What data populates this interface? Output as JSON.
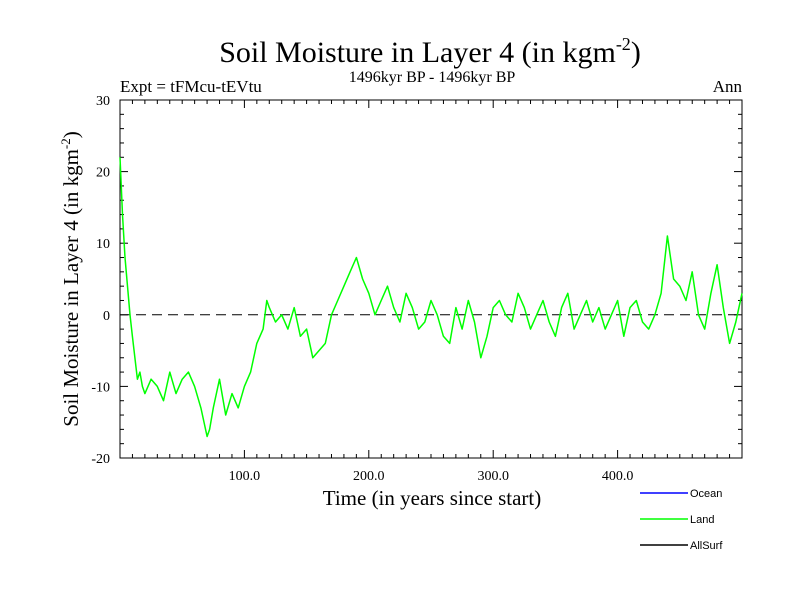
{
  "chart_data": {
    "type": "line",
    "title": "Soil Moisture in Layer 4 (in kgm",
    "title_sup": "-2",
    "title_close": ")",
    "subtitle_left": "Expt = tFMcu-tEVtu",
    "subtitle_center": "1496kyr BP - 1496kyr BP",
    "subtitle_right": "Ann",
    "xlabel": "Time (in years since start)",
    "ylabel": "Soil Moisture in Layer 4 (in kgm",
    "ylabel_sup": "-2",
    "ylabel_close": ")",
    "xlim": [
      0,
      500
    ],
    "ylim": [
      -20,
      30
    ],
    "xticks": [
      100,
      200,
      300,
      400
    ],
    "xtick_labels": [
      "100.0",
      "200.0",
      "300.0",
      "400.0"
    ],
    "yticks": [
      -20,
      -10,
      0,
      10,
      20,
      30
    ],
    "ytick_labels": [
      "-20",
      "-10",
      "0",
      "10",
      "20",
      "30"
    ],
    "zero_line": 0,
    "legend": [
      {
        "name": "Ocean",
        "color": "#0000ff"
      },
      {
        "name": "Land",
        "color": "#00ff00"
      },
      {
        "name": "AllSurf",
        "color": "#000000"
      }
    ],
    "series": [
      {
        "name": "Land",
        "color": "#00ff00",
        "x": [
          0,
          2,
          4,
          6,
          8,
          10,
          12,
          14,
          16,
          18,
          20,
          25,
          30,
          35,
          40,
          45,
          50,
          55,
          60,
          65,
          70,
          72,
          75,
          80,
          85,
          90,
          95,
          100,
          105,
          110,
          115,
          118,
          120,
          125,
          130,
          135,
          140,
          145,
          150,
          155,
          160,
          165,
          170,
          175,
          180,
          185,
          190,
          195,
          200,
          205,
          210,
          215,
          220,
          225,
          230,
          235,
          240,
          245,
          250,
          255,
          260,
          265,
          270,
          275,
          280,
          285,
          290,
          295,
          300,
          305,
          310,
          315,
          320,
          325,
          330,
          335,
          340,
          345,
          350,
          355,
          360,
          365,
          370,
          375,
          380,
          385,
          390,
          395,
          400,
          405,
          410,
          415,
          420,
          425,
          430,
          435,
          440,
          445,
          450,
          455,
          460,
          465,
          470,
          475,
          480,
          485,
          490,
          495,
          500
        ],
        "y": [
          22,
          14,
          8,
          4,
          0,
          -3,
          -6,
          -9,
          -8,
          -10,
          -11,
          -9,
          -10,
          -12,
          -8,
          -11,
          -9,
          -8,
          -10,
          -13,
          -17,
          -16,
          -13,
          -9,
          -14,
          -11,
          -13,
          -10,
          -8,
          -4,
          -2,
          2,
          1,
          -1,
          0,
          -2,
          1,
          -3,
          -2,
          -6,
          -5,
          -4,
          0,
          2,
          4,
          6,
          8,
          5,
          3,
          0,
          2,
          4,
          1,
          -1,
          3,
          1,
          -2,
          -1,
          2,
          0,
          -3,
          -4,
          1,
          -2,
          2,
          -1,
          -6,
          -3,
          1,
          2,
          0,
          -1,
          3,
          1,
          -2,
          0,
          2,
          -1,
          -3,
          1,
          3,
          -2,
          0,
          2,
          -1,
          1,
          -2,
          0,
          2,
          -3,
          1,
          2,
          -1,
          -2,
          0,
          3,
          11,
          5,
          4,
          2,
          6,
          0,
          -2,
          3,
          7,
          1,
          -4,
          -1,
          3
        ]
      }
    ]
  }
}
